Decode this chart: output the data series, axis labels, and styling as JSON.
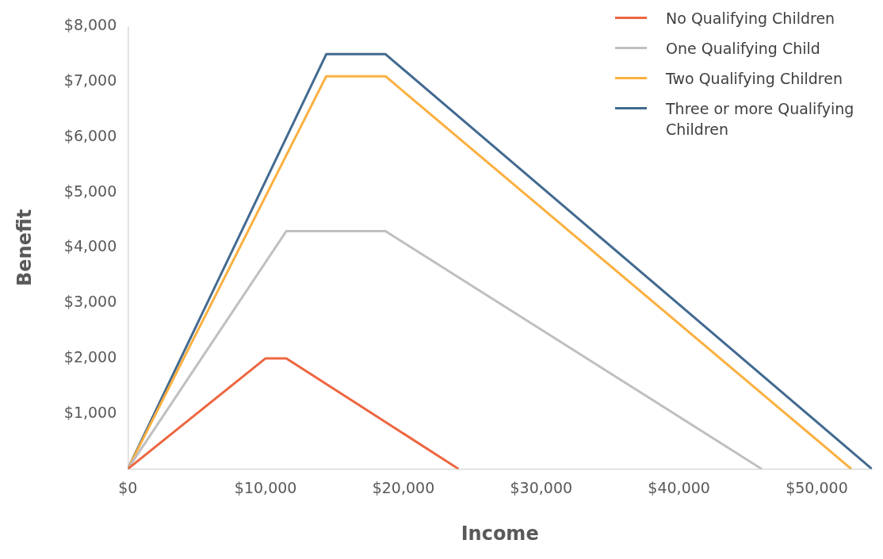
{
  "chart_data": {
    "type": "line",
    "xlabel": "Income",
    "ylabel": "Benefit",
    "xlim": [
      0,
      54000
    ],
    "xticks": [
      {
        "value": 0,
        "label": "$0"
      },
      {
        "value": 10000,
        "label": "$10,000"
      },
      {
        "value": 20000,
        "label": "$20,000"
      },
      {
        "value": 30000,
        "label": "$30,000"
      },
      {
        "value": 40000,
        "label": "$40,000"
      },
      {
        "value": 50000,
        "label": "$50,000"
      }
    ],
    "ylim": [
      0,
      8000
    ],
    "yticks": [
      {
        "value": 1000,
        "label": "$1,000"
      },
      {
        "value": 2000,
        "label": "$2,000"
      },
      {
        "value": 3000,
        "label": "$3,000"
      },
      {
        "value": 4000,
        "label": "$4,000"
      },
      {
        "value": 5000,
        "label": "$5,000"
      },
      {
        "value": 6000,
        "label": "$6,000"
      },
      {
        "value": 7000,
        "label": "$7,000"
      },
      {
        "value": 8000,
        "label": "$8,000"
      }
    ],
    "grid": false,
    "legend": "top right",
    "marker": "none",
    "line_style": "solid",
    "series": [
      {
        "name": "No Qualifying Children",
        "color": "#ed6640",
        "x": [
          0,
          10000,
          11500,
          24000
        ],
        "values": [
          0,
          2000,
          2000,
          0
        ]
      },
      {
        "name": "One Qualifying Child",
        "color": "#bfbfbf",
        "x": [
          0,
          11500,
          18700,
          46000
        ],
        "values": [
          0,
          4300,
          4300,
          0
        ]
      },
      {
        "name": "Two Qualifying Children",
        "color": "#fbb040",
        "x": [
          0,
          14400,
          18700,
          52500
        ],
        "values": [
          0,
          7100,
          7100,
          0
        ]
      },
      {
        "name": "Three or more Qualifying Children",
        "color": "#426a90",
        "x": [
          0,
          14400,
          18700,
          54000
        ],
        "values": [
          0,
          7500,
          7500,
          0
        ]
      }
    ]
  }
}
